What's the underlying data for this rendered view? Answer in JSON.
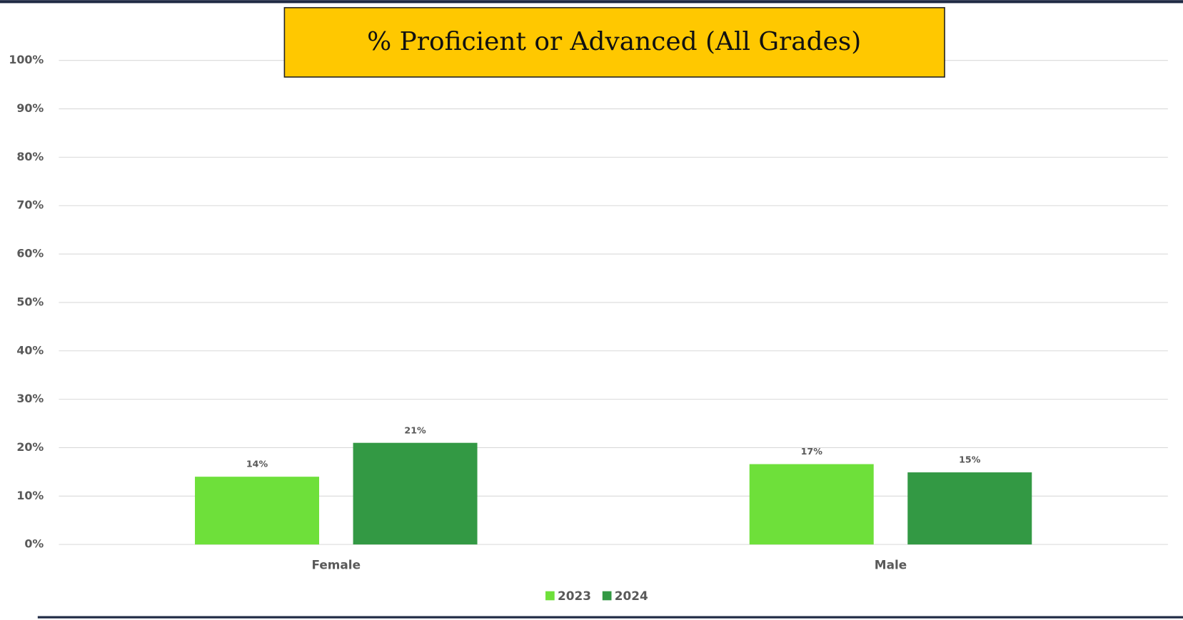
{
  "chart_data": {
    "type": "bar",
    "title": "% Proficient or Advanced (All Grades)",
    "categories": [
      "Female",
      "Male"
    ],
    "series": [
      {
        "name": "2023",
        "color": "#6ee03a",
        "values": [
          14,
          16.6
        ],
        "value_labels": [
          "14%",
          "17%"
        ]
      },
      {
        "name": "2024",
        "color": "#339944",
        "values": [
          21,
          14.9
        ],
        "value_labels": [
          "21%",
          "15%"
        ]
      }
    ],
    "ylim": [
      0,
      100
    ],
    "yticks": [
      {
        "value": 0,
        "label": "0%"
      },
      {
        "value": 10,
        "label": "10%"
      },
      {
        "value": 20,
        "label": "20%"
      },
      {
        "value": 30,
        "label": "30%"
      },
      {
        "value": 40,
        "label": "40%"
      },
      {
        "value": 50,
        "label": "50%"
      },
      {
        "value": 60,
        "label": "60%"
      },
      {
        "value": 70,
        "label": "70%"
      },
      {
        "value": 80,
        "label": "80%"
      },
      {
        "value": 90,
        "label": "90%"
      },
      {
        "value": 100,
        "label": "100%"
      }
    ],
    "grid": true,
    "legend": "bottom"
  }
}
